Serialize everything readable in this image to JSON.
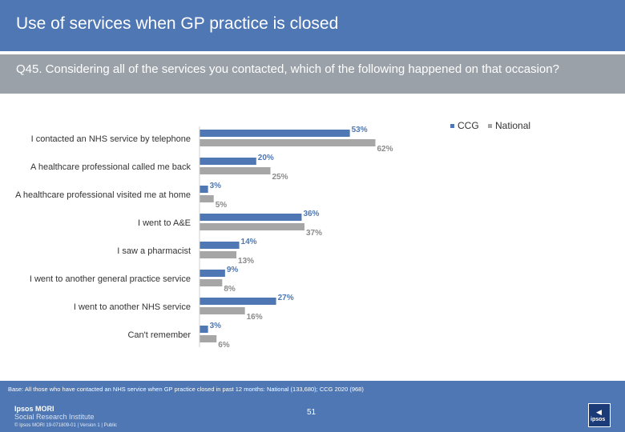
{
  "header": {
    "title": "Use of services when GP practice is closed",
    "question": "Q45. Considering all of the services you contacted, which of the following happened on that occasion?"
  },
  "legend": {
    "ccg": "CCG",
    "national": "National"
  },
  "colors": {
    "ccg": "#4e77b3",
    "national": "#a6a6a6",
    "ccg_text": "#4e77b3",
    "national_text": "#8a8a8a",
    "header": "#4e77b3",
    "subheader": "#9aa1a9"
  },
  "chart_data": {
    "type": "bar",
    "orientation": "horizontal",
    "categories": [
      "I contacted an NHS service by telephone",
      "A healthcare professional called me back",
      "A healthcare professional visited me at home",
      "I went to A&E",
      "I saw a pharmacist",
      "I went to another general practice service",
      "I went to another NHS service",
      "Can't remember"
    ],
    "series": [
      {
        "name": "CCG",
        "values": [
          53,
          20,
          3,
          36,
          14,
          9,
          27,
          3
        ],
        "labels": [
          "53%",
          "20%",
          "3%",
          "36%",
          "14%",
          "9%",
          "27%",
          "3%"
        ]
      },
      {
        "name": "National",
        "values": [
          62,
          25,
          5,
          37,
          13,
          8,
          16,
          6
        ],
        "labels": [
          "62%",
          "25%",
          "5%",
          "37%",
          "13%",
          "8%",
          "16%",
          "6%"
        ]
      }
    ],
    "xlim": [
      0,
      100
    ],
    "unit": "%"
  },
  "footer": {
    "base": "Base: All those who have contacted an NHS service when GP practice closed in past 12 months: National (133,680); CCG 2020 (968)",
    "logo_line1": "Ipsos MORI",
    "logo_line2": "Social Research Institute",
    "page_number": "51",
    "copyright": "© Ipsos MORI     19-071809-01 | Version 1 | Public",
    "corner_logo": "ipsos"
  }
}
